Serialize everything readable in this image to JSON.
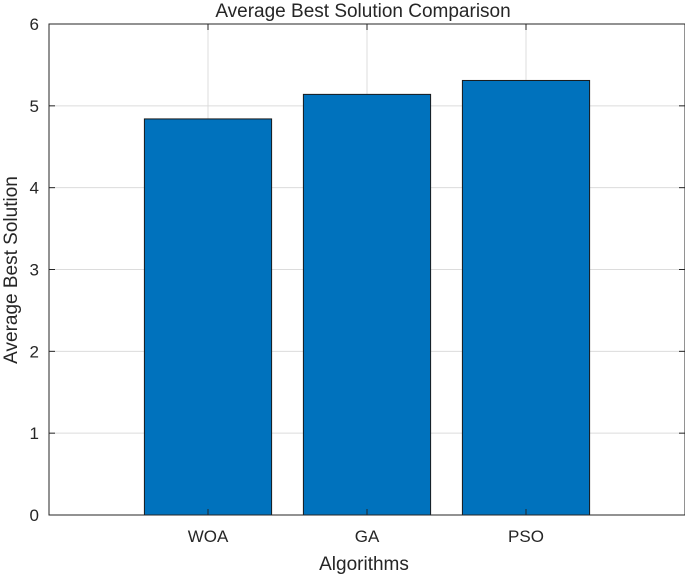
{
  "chart_data": {
    "type": "bar",
    "title": "Average Best Solution Comparison",
    "xlabel": "Algorithms",
    "ylabel": "Average Best Solution",
    "categories": [
      "WOA",
      "GA",
      "PSO"
    ],
    "values": [
      4.84,
      5.14,
      5.31
    ],
    "ylim": [
      0,
      6
    ],
    "yticks": [
      "0",
      "1",
      "2",
      "3",
      "4",
      "5",
      "6"
    ],
    "grid": true,
    "bar_color": "#0072BD",
    "bar_edge_color": "#1a1a1a"
  }
}
